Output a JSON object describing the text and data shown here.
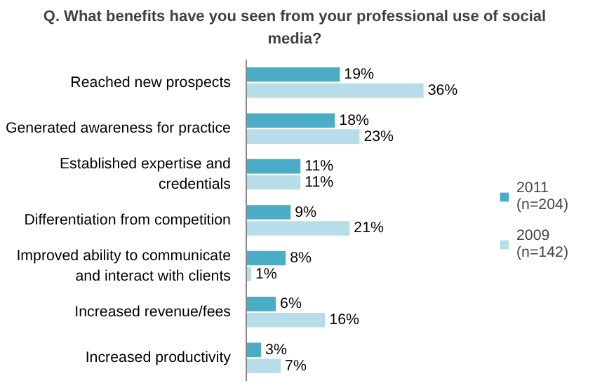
{
  "chart_data": {
    "type": "bar",
    "orientation": "horizontal",
    "title": "Q. What benefits have you seen from your professional use of social media?",
    "categories": [
      "Reached new prospects",
      "Generated awareness for practice",
      "Established expertise and credentials",
      "Differentiation from competition",
      "Improved ability to communicate and interact with clients",
      "Increased revenue/fees",
      "Increased productivity"
    ],
    "series": [
      {
        "name": "2011 (n=204)",
        "color": "#4bacc6",
        "values": [
          19,
          18,
          11,
          9,
          8,
          6,
          3
        ],
        "value_labels": [
          "19%",
          "18%",
          "11%",
          "9%",
          "8%",
          "6%",
          "3%"
        ]
      },
      {
        "name": "2009 (n=142)",
        "color": "#b7dee8",
        "values": [
          36,
          23,
          11,
          21,
          1,
          16,
          7
        ],
        "value_labels": [
          "36%",
          "23%",
          "11%",
          "21%",
          "1%",
          "16%",
          "7%"
        ]
      }
    ],
    "legend": "right",
    "grid": false
  }
}
